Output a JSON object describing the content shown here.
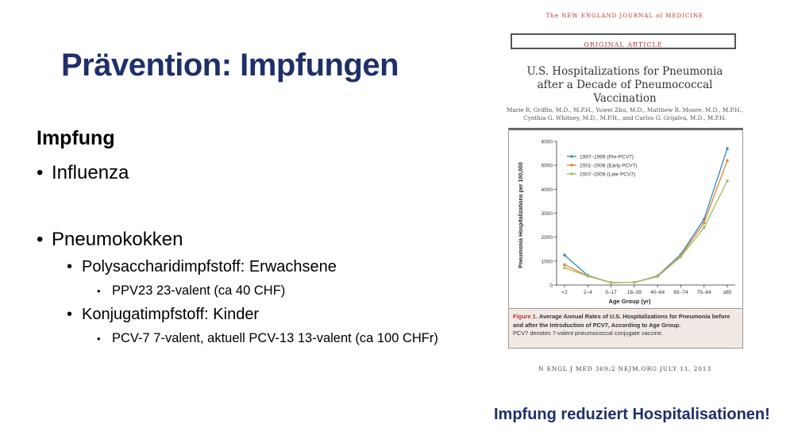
{
  "slide": {
    "title": "Prävention: Impfungen",
    "heading": "Impfung",
    "bullets": {
      "influenza": "Influenza",
      "pneumokokken": "Pneumokokken",
      "poly": "Polysaccharidimpfstoff: Erwachsene",
      "ppv23": "PPV23 23-valent (ca 40 CHF)",
      "konjugat": "Konjugatimpfstoff: Kinder",
      "pcv": "PCV-7 7-valent, aktuell PCV-13 13-valent (ca 100 CHFr)"
    },
    "bullet_symbol": "•",
    "tagline": "Impfung reduziert Hospitalisationen!"
  },
  "article": {
    "journal": "The NEW ENGLAND JOURNAL of MEDICINE",
    "section": "ORIGINAL ARTICLE",
    "title_line1": "U.S. Hospitalizations for Pneumonia",
    "title_line2": "after a Decade of Pneumococcal Vaccination",
    "authors_line1": "Marie R. Griffin, M.D., M.P.H., Yuwei Zhu, M.D., Matthew R. Moore, M.D., M.P.H.,",
    "authors_line2": "Cynthia G. Whitney, M.D., M.P.H., and Carlos G. Grijalva, M.D., M.P.H.",
    "caption_label": "Figure 1.",
    "caption_bold": "Average Annual Rates of U.S. Hospitalizations for Pneumonia before and after the Introduction of PCV7, According to Age Group.",
    "caption_note": "PCV7 denotes 7-valent pneumococcal conjugate vaccine.",
    "footer": "N ENGL J MED 369;2    NEJM.ORG    JULY 11, 2013"
  },
  "chart_data": {
    "type": "line",
    "categories": [
      "<2",
      "2–4",
      "5–17",
      "18–39",
      "40–64",
      "65–74",
      "75–84",
      "≥85"
    ],
    "xlabel": "Age Group (yr)",
    "ylabel": "Pneumonia Hospitalizations per 100,000",
    "ylim": [
      0,
      6000
    ],
    "yticks": [
      "0",
      "1000",
      "2000",
      "3000",
      "4000",
      "5000",
      "6000"
    ],
    "legend_position": "top-left",
    "grid": false,
    "series": [
      {
        "name": "1997–1999 (Pre-PCV7)",
        "color": "#3b8fc6",
        "values": [
          1250,
          400,
          100,
          110,
          380,
          1280,
          2750,
          5700
        ]
      },
      {
        "name": "2001–2006 (Early PCV7)",
        "color": "#e08a3c",
        "values": [
          850,
          380,
          100,
          110,
          360,
          1220,
          2600,
          5200
        ]
      },
      {
        "name": "2007–2009 (Late PCV7)",
        "color": "#a8c060",
        "values": [
          720,
          370,
          100,
          110,
          350,
          1180,
          2400,
          4350
        ]
      }
    ]
  }
}
